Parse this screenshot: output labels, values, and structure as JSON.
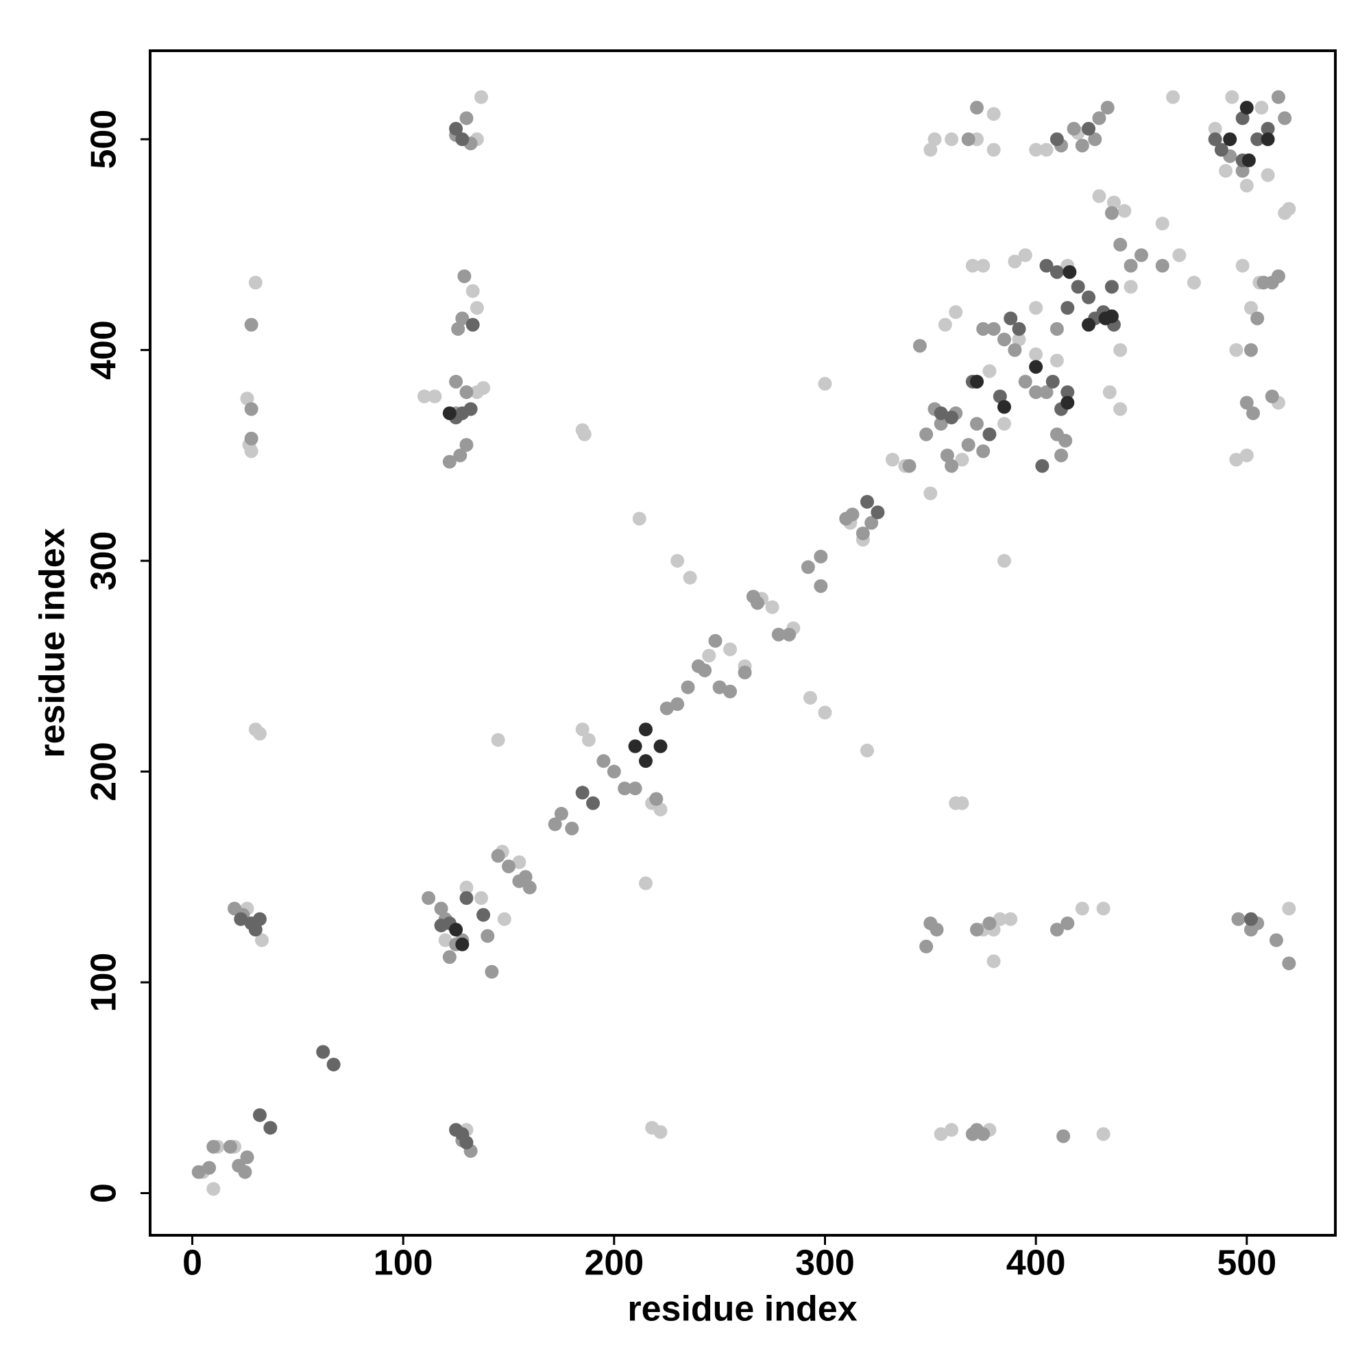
{
  "chart_data": {
    "type": "scatter",
    "x_label": "residue index",
    "y_label": "residue index",
    "xlim": [
      -20,
      542
    ],
    "ylim": [
      -20,
      542
    ],
    "xticks": [
      0,
      100,
      200,
      300,
      400,
      500
    ],
    "yticks": [
      0,
      100,
      200,
      300,
      400,
      500
    ],
    "series": [
      {
        "color": "#c8c8c8",
        "x": [
          5,
          10,
          12,
          20,
          30,
          27,
          28,
          26,
          30,
          32,
          33,
          26,
          110,
          115,
          120,
          130,
          137,
          148,
          137,
          135,
          135,
          133,
          135,
          138,
          130,
          128,
          145,
          147,
          155,
          185,
          186,
          185,
          188,
          215,
          212,
          218,
          222,
          218,
          222,
          230,
          236,
          245,
          250,
          255,
          262,
          270,
          275,
          285,
          300,
          293,
          300,
          320,
          312,
          318,
          332,
          338,
          350,
          352,
          350,
          360,
          355,
          360,
          362,
          365,
          357,
          362,
          370,
          375,
          372,
          380,
          380,
          390,
          395,
          400,
          400,
          405,
          385,
          380,
          380,
          383,
          388,
          375,
          378,
          385,
          400,
          410,
          420,
          430,
          437,
          442,
          440,
          440,
          435,
          422,
          432,
          432,
          445,
          460,
          465,
          475,
          468,
          485,
          490,
          493,
          500,
          495,
          495,
          500,
          502,
          506,
          507,
          515,
          520,
          520,
          518,
          510,
          498,
          378,
          415,
          392,
          365
        ],
        "y": [
          10,
          2,
          22,
          22,
          432,
          355,
          352,
          377,
          220,
          218,
          120,
          135,
          378,
          378,
          120,
          145,
          140,
          130,
          520,
          500,
          420,
          428,
          380,
          382,
          30,
          28,
          215,
          162,
          157,
          362,
          360,
          220,
          215,
          147,
          320,
          185,
          182,
          31,
          29,
          300,
          292,
          255,
          240,
          258,
          250,
          282,
          278,
          268,
          384,
          235,
          228,
          210,
          318,
          310,
          348,
          345,
          332,
          500,
          495,
          500,
          28,
          30,
          185,
          185,
          412,
          418,
          440,
          440,
          500,
          512,
          495,
          442,
          445,
          398,
          495,
          495,
          300,
          110,
          125,
          130,
          130,
          125,
          30,
          365,
          420,
          395,
          503,
          473,
          470,
          466,
          400,
          372,
          380,
          135,
          135,
          28,
          430,
          460,
          520,
          432,
          445,
          505,
          485,
          520,
          478,
          400,
          348,
          350,
          420,
          432,
          515,
          375,
          135,
          467,
          465,
          483,
          440,
          390,
          440,
          405,
          348
        ]
      },
      {
        "color": "#999999",
        "x": [
          3,
          8,
          10,
          18,
          22,
          25,
          26,
          20,
          24,
          28,
          28,
          28,
          112,
          118,
          120,
          122,
          125,
          128,
          125,
          130,
          132,
          129,
          126,
          128,
          125,
          130,
          125,
          127,
          122,
          130,
          128,
          132,
          142,
          140,
          145,
          150,
          155,
          158,
          160,
          175,
          172,
          180,
          195,
          200,
          205,
          210,
          220,
          225,
          230,
          235,
          240,
          243,
          248,
          250,
          255,
          262,
          266,
          268,
          278,
          283,
          292,
          298,
          298,
          310,
          313,
          318,
          322,
          340,
          345,
          348,
          352,
          355,
          358,
          360,
          362,
          368,
          372,
          375,
          372,
          375,
          380,
          385,
          390,
          395,
          400,
          405,
          410,
          410,
          412,
          418,
          422,
          428,
          430,
          434,
          436,
          440,
          445,
          450,
          460,
          348,
          350,
          353,
          372,
          378,
          410,
          415,
          413,
          372,
          375,
          372,
          368,
          492,
          498,
          502,
          505,
          508,
          500,
          503,
          512,
          496,
          502,
          505,
          514,
          520,
          370,
          515,
          512,
          515,
          518,
          412,
          414
        ],
        "y": [
          10,
          12,
          22,
          22,
          13,
          10,
          17,
          135,
          132,
          358,
          412,
          372,
          140,
          135,
          130,
          112,
          118,
          120,
          502,
          510,
          498,
          435,
          410,
          415,
          385,
          380,
          370,
          350,
          347,
          355,
          25,
          20,
          105,
          122,
          160,
          155,
          148,
          150,
          145,
          180,
          175,
          173,
          205,
          200,
          192,
          192,
          187,
          230,
          232,
          240,
          250,
          248,
          262,
          240,
          238,
          247,
          283,
          280,
          265,
          265,
          297,
          302,
          288,
          320,
          322,
          313,
          318,
          345,
          402,
          360,
          372,
          365,
          350,
          345,
          370,
          355,
          365,
          352,
          385,
          410,
          410,
          405,
          400,
          385,
          380,
          380,
          360,
          410,
          497,
          505,
          497,
          500,
          510,
          515,
          465,
          450,
          440,
          445,
          440,
          117,
          128,
          125,
          125,
          128,
          125,
          128,
          27,
          30,
          28,
          515,
          500,
          492,
          485,
          400,
          415,
          432,
          375,
          370,
          378,
          130,
          125,
          128,
          120,
          109,
          28,
          435,
          432,
          520,
          510,
          350,
          357
        ]
      },
      {
        "color": "#666666",
        "x": [
          30,
          32,
          37,
          62,
          67,
          23,
          28,
          32,
          118,
          122,
          125,
          128,
          130,
          128,
          125,
          132,
          130,
          138,
          185,
          190,
          125,
          128,
          133,
          320,
          325,
          355,
          360,
          370,
          378,
          383,
          388,
          392,
          403,
          405,
          410,
          415,
          420,
          425,
          428,
          432,
          436,
          408,
          412,
          415,
          485,
          488,
          498,
          502,
          505,
          510,
          498,
          410,
          425,
          437
        ],
        "y": [
          125,
          37,
          31,
          67,
          61,
          130,
          128,
          130,
          127,
          128,
          30,
          28,
          24,
          370,
          368,
          372,
          140,
          132,
          190,
          185,
          505,
          500,
          412,
          328,
          323,
          370,
          368,
          385,
          360,
          378,
          415,
          410,
          345,
          440,
          437,
          420,
          430,
          425,
          415,
          418,
          430,
          385,
          372,
          380,
          500,
          495,
          490,
          130,
          500,
          505,
          510,
          500,
          505,
          412
        ]
      },
      {
        "color": "#2a2a2a",
        "x": [
          125,
          210,
          215,
          215,
          222,
          122,
          385,
          372,
          416,
          425,
          433,
          436,
          415,
          500,
          501,
          492,
          510,
          128,
          400
        ],
        "y": [
          125,
          212,
          220,
          205,
          212,
          370,
          373,
          385,
          437,
          412,
          415,
          416,
          375,
          515,
          490,
          500,
          500,
          118,
          392
        ]
      }
    ]
  }
}
